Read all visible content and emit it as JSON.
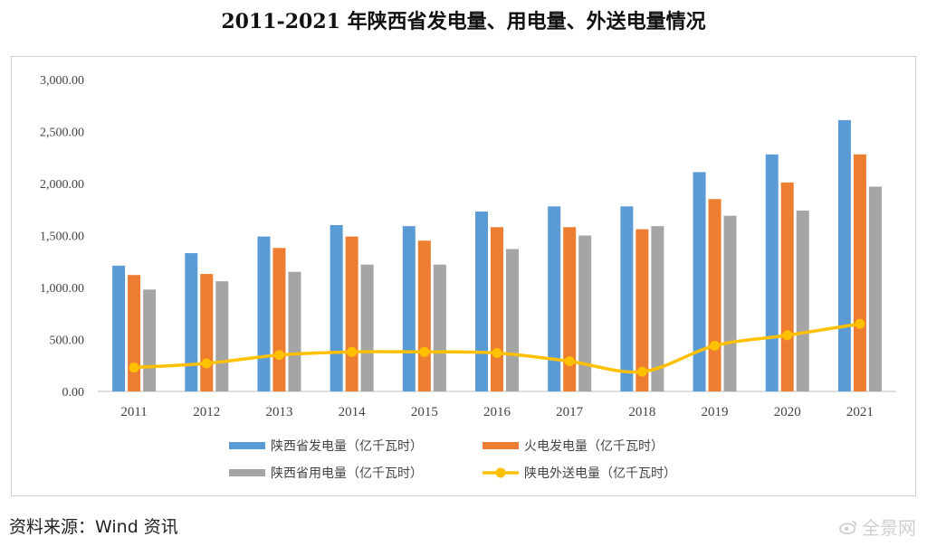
{
  "chart_data": {
    "type": "bar",
    "title": "2011-2021 年陕西省发电量、用电量、外送电量情况",
    "categories": [
      "2011",
      "2012",
      "2013",
      "2014",
      "2015",
      "2016",
      "2017",
      "2018",
      "2019",
      "2020",
      "2021"
    ],
    "ylim": [
      0,
      3000
    ],
    "yticks": [
      "0.00",
      "500.00",
      "1,000.00",
      "1,500.00",
      "2,000.00",
      "2,500.00",
      "3,000.00"
    ],
    "grid": false,
    "legend_position": "bottom",
    "series": [
      {
        "name": "陕西省发电量（亿千瓦时）",
        "type": "bar",
        "color": "#5b9bd5",
        "values": [
          1210,
          1330,
          1490,
          1600,
          1590,
          1730,
          1780,
          1780,
          2110,
          2280,
          2610
        ]
      },
      {
        "name": "火电发电量（亿千瓦时）",
        "type": "bar",
        "color": "#ed7d31",
        "values": [
          1120,
          1130,
          1380,
          1490,
          1450,
          1580,
          1580,
          1560,
          1850,
          2010,
          2280
        ]
      },
      {
        "name": "陕西省用电量（亿千瓦时）",
        "type": "bar",
        "color": "#a5a5a5",
        "values": [
          980,
          1060,
          1150,
          1220,
          1220,
          1370,
          1500,
          1590,
          1690,
          1740,
          1970
        ]
      },
      {
        "name": "陕电外送电量（亿千瓦时）",
        "type": "line",
        "color": "#ffc000",
        "values": [
          230,
          270,
          350,
          380,
          380,
          370,
          290,
          190,
          440,
          540,
          650
        ]
      }
    ]
  },
  "source": "资料来源：Wind 资讯",
  "watermark": "全景网"
}
